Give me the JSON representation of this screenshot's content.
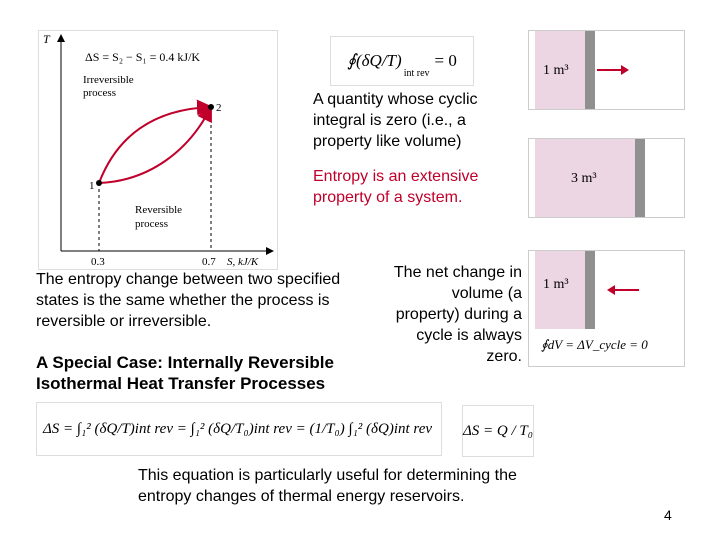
{
  "ts_diagram": {
    "y_axis": "T",
    "x_axis": "S, kJ/K",
    "delta_s_eq": "ΔS = S₂ − S₁ = 0.4 kJ/K",
    "irreversible_label_1": "Irreversible",
    "irreversible_label_2": "process",
    "reversible_label_1": "Reversible",
    "reversible_label_2": "process",
    "point_1": "1",
    "point_2": "2",
    "tick_03": "0.3",
    "tick_07": "0.7"
  },
  "cyclic_integral": {
    "lhs": "∮(δQ/T)",
    "subscript": "int rev",
    "rhs": "= 0",
    "caption": "A quantity whose cyclic integral is zero (i.e., a property like volume)"
  },
  "entropy_extensive": "Entropy is an extensive property of a system.",
  "piston_cylinders": {
    "top_volume": "1 m³",
    "middle_volume": "3 m³",
    "bottom_volume": "1 m³",
    "equation": "∮dV = ΔV_cycle = 0"
  },
  "net_change": "The net change in volume (a property) during a cycle is always zero.",
  "entropy_change_text": "The entropy change between two specified states is the same whether the process is reversible or irreversible.",
  "special_case": {
    "line1": "A Special Case: Internally Reversible",
    "line2": "Isothermal Heat Transfer Processes"
  },
  "equation_main": "ΔS = ∫₁² (δQ/T)int rev = ∫₁² (δQ/T₀)int rev = (1/T₀) ∫₁² (δQ)int rev",
  "equation_result": "ΔS = Q / T₀",
  "useful_text": "This equation is particularly useful for determining the entropy changes of thermal energy reservoirs.",
  "page_number": "4"
}
